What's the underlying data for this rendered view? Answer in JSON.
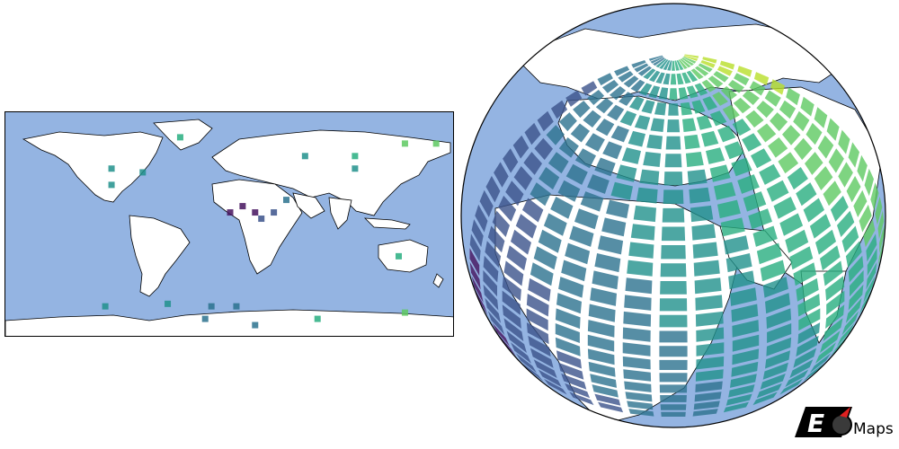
{
  "figure": {
    "panels": [
      {
        "projection": "plate-carree",
        "ocean_color": "#94b4e2",
        "land_color": "#ffffff",
        "border_color": "#000000"
      },
      {
        "projection": "orthographic",
        "ocean_color": "#94b4e2",
        "land_color": "#ffffff",
        "border_color": "#000000"
      }
    ]
  },
  "colormap": {
    "name": "viridis",
    "stops": [
      "#45135e",
      "#3b528b",
      "#2c728e",
      "#21918c",
      "#28ae80",
      "#5ec962",
      "#b8de29"
    ]
  },
  "left_markers": [
    {
      "lon": -95,
      "lat": 45,
      "v": 0.55
    },
    {
      "lon": -70,
      "lat": 42,
      "v": 0.5
    },
    {
      "lon": -95,
      "lat": 32,
      "v": 0.55
    },
    {
      "lon": -40,
      "lat": 70,
      "v": 0.6
    },
    {
      "lon": 10,
      "lat": 15,
      "v": 0.05
    },
    {
      "lon": 20,
      "lat": 10,
      "v": 0.08
    },
    {
      "lon": 25,
      "lat": 5,
      "v": 0.1
    },
    {
      "lon": 35,
      "lat": 10,
      "v": 0.12
    },
    {
      "lon": 0,
      "lat": 10,
      "v": 0.06
    },
    {
      "lon": 45,
      "lat": 20,
      "v": 0.25
    },
    {
      "lon": 60,
      "lat": 55,
      "v": 0.45
    },
    {
      "lon": 100,
      "lat": 45,
      "v": 0.55
    },
    {
      "lon": 140,
      "lat": 65,
      "v": 0.75
    },
    {
      "lon": 165,
      "lat": 65,
      "v": 0.9
    },
    {
      "lon": 100,
      "lat": 55,
      "v": 0.65
    },
    {
      "lon": 135,
      "lat": -25,
      "v": 0.6
    },
    {
      "lon": -15,
      "lat": -65,
      "v": 0.4
    },
    {
      "lon": 5,
      "lat": -65,
      "v": 0.35
    },
    {
      "lon": -100,
      "lat": -65,
      "v": 0.5
    },
    {
      "lon": -50,
      "lat": -63,
      "v": 0.55
    },
    {
      "lon": 140,
      "lat": -70,
      "v": 0.85
    },
    {
      "lon": -20,
      "lat": -75,
      "v": 0.3
    },
    {
      "lon": 20,
      "lat": -80,
      "v": 0.4
    },
    {
      "lon": 70,
      "lat": -75,
      "v": 0.6
    }
  ],
  "logo": {
    "text": "Maps",
    "letter": "E"
  }
}
